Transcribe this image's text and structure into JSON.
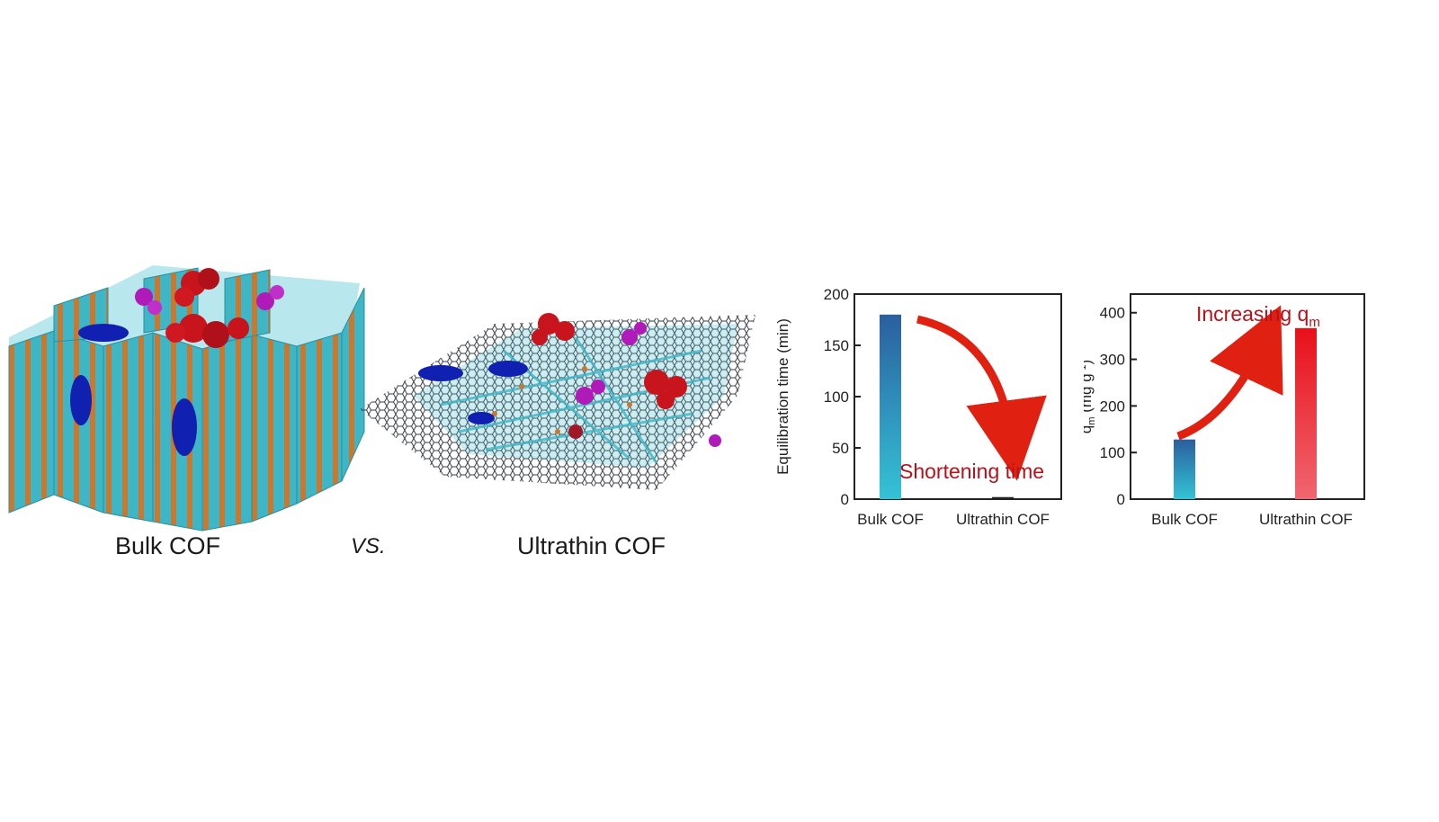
{
  "captions": {
    "left": "Bulk COF",
    "middle": "VS.",
    "right": "Ultrathin COF"
  },
  "colors": {
    "cof_wall": "#3fb6c6",
    "cof_stripe": "#c8782f",
    "molecule_red": "#c8141c",
    "molecule_blue": "#1020b0",
    "molecule_purple": "#b01ab8",
    "bar_blue_top": "#2a5f9e",
    "bar_blue_bottom": "#34c3d6",
    "bar_red_top": "#e8101a",
    "bar_red_bottom": "#f06670",
    "arrow_red": "#e02010",
    "annotation_text": "#b5121b"
  },
  "chart_data": [
    {
      "type": "bar",
      "categories": [
        "Bulk COF",
        "Ultrathin COF"
      ],
      "values": [
        180,
        2
      ],
      "ylabel": "Equilibration time (min)",
      "ylim": [
        0,
        200
      ],
      "yticks": [
        "0",
        "50",
        "100",
        "150",
        "200"
      ],
      "ytick_values": [
        0,
        50,
        100,
        150,
        200
      ],
      "annotation": "Shortening time",
      "arrow": "down",
      "grid": false
    },
    {
      "type": "bar",
      "categories": [
        "Bulk COF",
        "Ultrathin COF"
      ],
      "values": [
        128,
        367
      ],
      "ylabel_main": "q",
      "ylabel_sub": "m",
      "ylabel_unit": " (mg g",
      "ylabel_sup": "-1",
      "ylabel_close": ")",
      "ylim": [
        0,
        440
      ],
      "yticks": [
        "0",
        "100",
        "200",
        "300",
        "400"
      ],
      "ytick_values": [
        0,
        100,
        200,
        300,
        400
      ],
      "annotation_main": "Increasing q",
      "annotation_sub": "m",
      "arrow": "up",
      "grid": false
    }
  ]
}
